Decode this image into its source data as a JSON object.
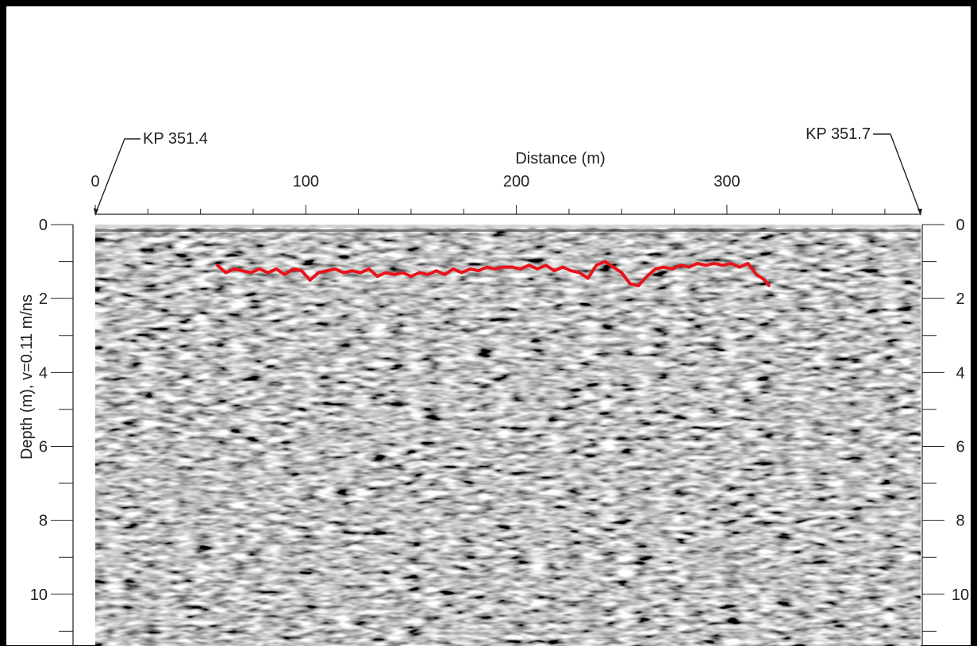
{
  "chart_data": {
    "type": "line",
    "title": "",
    "markers": {
      "left": "KP 351.4",
      "right": "KP 351.7"
    },
    "xlabel": "Distance (m)",
    "ylabel": "Depth (m), v=0.11 m/ns",
    "xlim": [
      0,
      392
    ],
    "ylim": [
      11.4,
      0
    ],
    "x_ticks": [
      "0",
      "100",
      "200",
      "300"
    ],
    "x_tick_values": [
      0,
      100,
      200,
      300
    ],
    "x_minor_step": 25,
    "y_ticks": [
      "0",
      "2",
      "4",
      "6",
      "8",
      "10"
    ],
    "y_tick_values": [
      0,
      2,
      4,
      6,
      8,
      10
    ],
    "y_minor_step": 1,
    "background": "GPR radargram (grayscale reflections)",
    "grid": false,
    "series": [
      {
        "color": "#e8141b",
        "x": [
          58,
          62,
          66,
          70,
          74,
          78,
          82,
          86,
          90,
          94,
          98,
          102,
          106,
          110,
          114,
          118,
          122,
          126,
          130,
          134,
          138,
          142,
          146,
          150,
          154,
          158,
          162,
          166,
          170,
          174,
          178,
          182,
          186,
          190,
          194,
          198,
          202,
          206,
          210,
          214,
          218,
          222,
          226,
          230,
          234,
          238,
          242,
          246,
          250,
          254,
          258,
          262,
          266,
          270,
          274,
          278,
          282,
          286,
          290,
          294,
          298,
          302,
          306,
          310,
          314,
          318,
          320
        ],
        "y": [
          1.1,
          1.3,
          1.2,
          1.25,
          1.3,
          1.2,
          1.3,
          1.2,
          1.35,
          1.2,
          1.25,
          1.5,
          1.3,
          1.25,
          1.2,
          1.3,
          1.25,
          1.3,
          1.2,
          1.4,
          1.3,
          1.35,
          1.3,
          1.4,
          1.3,
          1.35,
          1.25,
          1.35,
          1.2,
          1.3,
          1.2,
          1.25,
          1.15,
          1.2,
          1.15,
          1.15,
          1.2,
          1.1,
          1.2,
          1.1,
          1.25,
          1.15,
          1.25,
          1.3,
          1.45,
          1.1,
          1.0,
          1.15,
          1.3,
          1.6,
          1.65,
          1.4,
          1.2,
          1.15,
          1.2,
          1.1,
          1.15,
          1.05,
          1.1,
          1.05,
          1.1,
          1.05,
          1.15,
          1.05,
          1.35,
          1.5,
          1.65
        ]
      }
    ]
  }
}
